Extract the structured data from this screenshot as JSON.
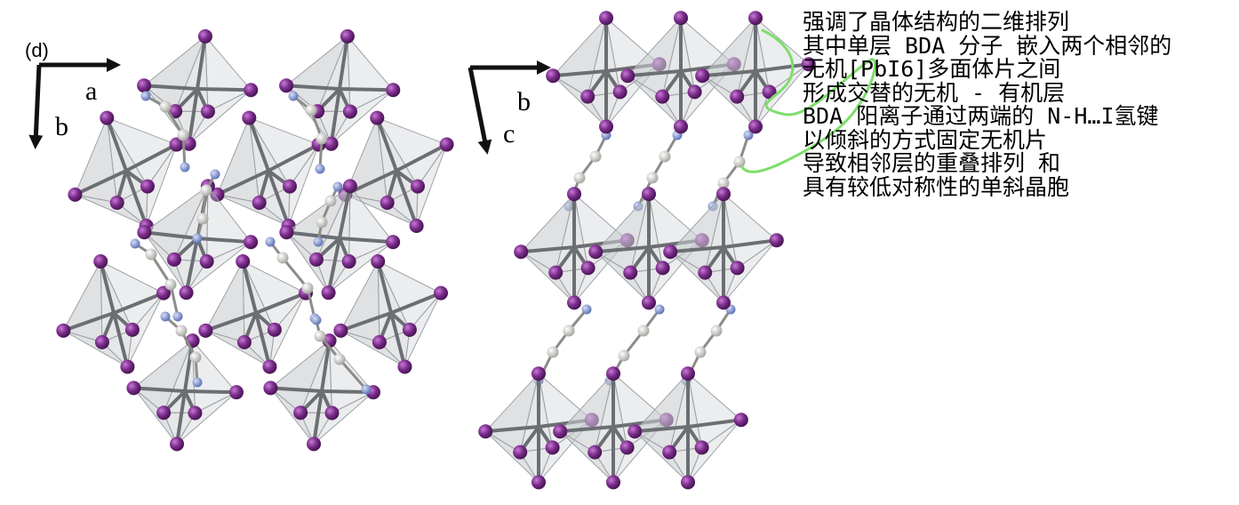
{
  "panel_label": "(d)",
  "axes": {
    "left": {
      "horizontal": "a",
      "vertical": "b"
    },
    "right": {
      "horizontal": "b",
      "vertical": "c"
    }
  },
  "annotation_lines": [
    "强调了晶体结构的二维排列",
    "其中单层 BDA 分子 嵌入两个相邻的",
    "无机[PbI6]多面体片之间",
    "形成交替的无机 - 有机层",
    "BDA 阳离子通过两端的 N-H…I氢键",
    "以倾斜的方式固定无机片",
    "导致相邻层的重叠排列 和",
    "具有较低对称性的单斜晶胞"
  ],
  "colors": {
    "iodine": "#7b2d8b",
    "lead_octahedron": "#c9cccf",
    "pb_i_bond": "#6b6e72",
    "carbon": "#d4d4d0",
    "nitrogen": "#8f9fd6",
    "annotation_stroke": "#7dde6a"
  }
}
